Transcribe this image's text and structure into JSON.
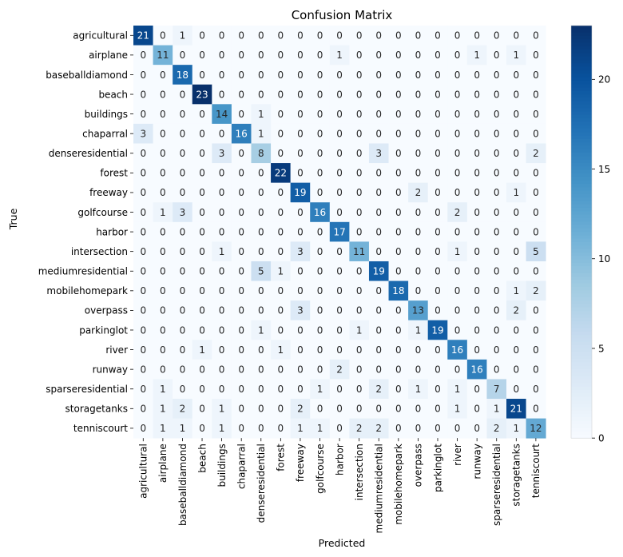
{
  "chart_data": {
    "type": "heatmap",
    "title": "Confusion Matrix",
    "xlabel": "Predicted",
    "ylabel": "True",
    "labels": [
      "agricultural",
      "airplane",
      "baseballdiamond",
      "beach",
      "buildings",
      "chaparral",
      "denseresidential",
      "forest",
      "freeway",
      "golfcourse",
      "harbor",
      "intersection",
      "mediumresidential",
      "mobilehomepark",
      "overpass",
      "parkinglot",
      "river",
      "runway",
      "sparseresidential",
      "storagetanks",
      "tenniscourt"
    ],
    "matrix": [
      [
        21,
        0,
        1,
        0,
        0,
        0,
        0,
        0,
        0,
        0,
        0,
        0,
        0,
        0,
        0,
        0,
        0,
        0,
        0,
        0,
        0
      ],
      [
        0,
        11,
        0,
        0,
        0,
        0,
        0,
        0,
        0,
        0,
        1,
        0,
        0,
        0,
        0,
        0,
        0,
        1,
        0,
        1,
        0
      ],
      [
        0,
        0,
        18,
        0,
        0,
        0,
        0,
        0,
        0,
        0,
        0,
        0,
        0,
        0,
        0,
        0,
        0,
        0,
        0,
        0,
        0
      ],
      [
        0,
        0,
        0,
        23,
        0,
        0,
        0,
        0,
        0,
        0,
        0,
        0,
        0,
        0,
        0,
        0,
        0,
        0,
        0,
        0,
        0
      ],
      [
        0,
        0,
        0,
        0,
        14,
        0,
        1,
        0,
        0,
        0,
        0,
        0,
        0,
        0,
        0,
        0,
        0,
        0,
        0,
        0,
        0
      ],
      [
        3,
        0,
        0,
        0,
        0,
        16,
        1,
        0,
        0,
        0,
        0,
        0,
        0,
        0,
        0,
        0,
        0,
        0,
        0,
        0,
        0
      ],
      [
        0,
        0,
        0,
        0,
        3,
        0,
        8,
        0,
        0,
        0,
        0,
        0,
        3,
        0,
        0,
        0,
        0,
        0,
        0,
        0,
        2
      ],
      [
        0,
        0,
        0,
        0,
        0,
        0,
        0,
        22,
        0,
        0,
        0,
        0,
        0,
        0,
        0,
        0,
        0,
        0,
        0,
        0,
        0
      ],
      [
        0,
        0,
        0,
        0,
        0,
        0,
        0,
        0,
        19,
        0,
        0,
        0,
        0,
        0,
        2,
        0,
        0,
        0,
        0,
        1,
        0
      ],
      [
        0,
        1,
        3,
        0,
        0,
        0,
        0,
        0,
        0,
        16,
        0,
        0,
        0,
        0,
        0,
        0,
        2,
        0,
        0,
        0,
        0
      ],
      [
        0,
        0,
        0,
        0,
        0,
        0,
        0,
        0,
        0,
        0,
        17,
        0,
        0,
        0,
        0,
        0,
        0,
        0,
        0,
        0,
        0
      ],
      [
        0,
        0,
        0,
        0,
        1,
        0,
        0,
        0,
        3,
        0,
        0,
        11,
        0,
        0,
        0,
        0,
        1,
        0,
        0,
        0,
        5
      ],
      [
        0,
        0,
        0,
        0,
        0,
        0,
        5,
        1,
        0,
        0,
        0,
        0,
        19,
        0,
        0,
        0,
        0,
        0,
        0,
        0,
        0
      ],
      [
        0,
        0,
        0,
        0,
        0,
        0,
        0,
        0,
        0,
        0,
        0,
        0,
        0,
        18,
        0,
        0,
        0,
        0,
        0,
        1,
        2
      ],
      [
        0,
        0,
        0,
        0,
        0,
        0,
        0,
        0,
        3,
        0,
        0,
        0,
        0,
        0,
        13,
        0,
        0,
        0,
        0,
        2,
        0
      ],
      [
        0,
        0,
        0,
        0,
        0,
        0,
        1,
        0,
        0,
        0,
        0,
        1,
        0,
        0,
        1,
        19,
        0,
        0,
        0,
        0,
        0
      ],
      [
        0,
        0,
        0,
        1,
        0,
        0,
        0,
        1,
        0,
        0,
        0,
        0,
        0,
        0,
        0,
        0,
        16,
        0,
        0,
        0,
        0
      ],
      [
        0,
        0,
        0,
        0,
        0,
        0,
        0,
        0,
        0,
        0,
        2,
        0,
        0,
        0,
        0,
        0,
        0,
        16,
        0,
        0,
        0
      ],
      [
        0,
        1,
        0,
        0,
        0,
        0,
        0,
        0,
        0,
        1,
        0,
        0,
        2,
        0,
        1,
        0,
        1,
        0,
        7,
        0,
        0
      ],
      [
        0,
        1,
        2,
        0,
        1,
        0,
        0,
        0,
        2,
        0,
        0,
        0,
        0,
        0,
        0,
        0,
        1,
        0,
        1,
        21,
        0
      ],
      [
        0,
        1,
        1,
        0,
        1,
        0,
        0,
        0,
        1,
        1,
        0,
        2,
        2,
        0,
        0,
        0,
        0,
        0,
        2,
        1,
        12
      ]
    ],
    "colorbar": {
      "min": 0,
      "max": 23,
      "ticks": [
        0,
        5,
        10,
        15,
        20
      ]
    },
    "colormap": "Blues",
    "colors": {
      "low": "#f7fbff",
      "high": "#08306b"
    },
    "grid": false,
    "legend": "colorbar-right"
  }
}
